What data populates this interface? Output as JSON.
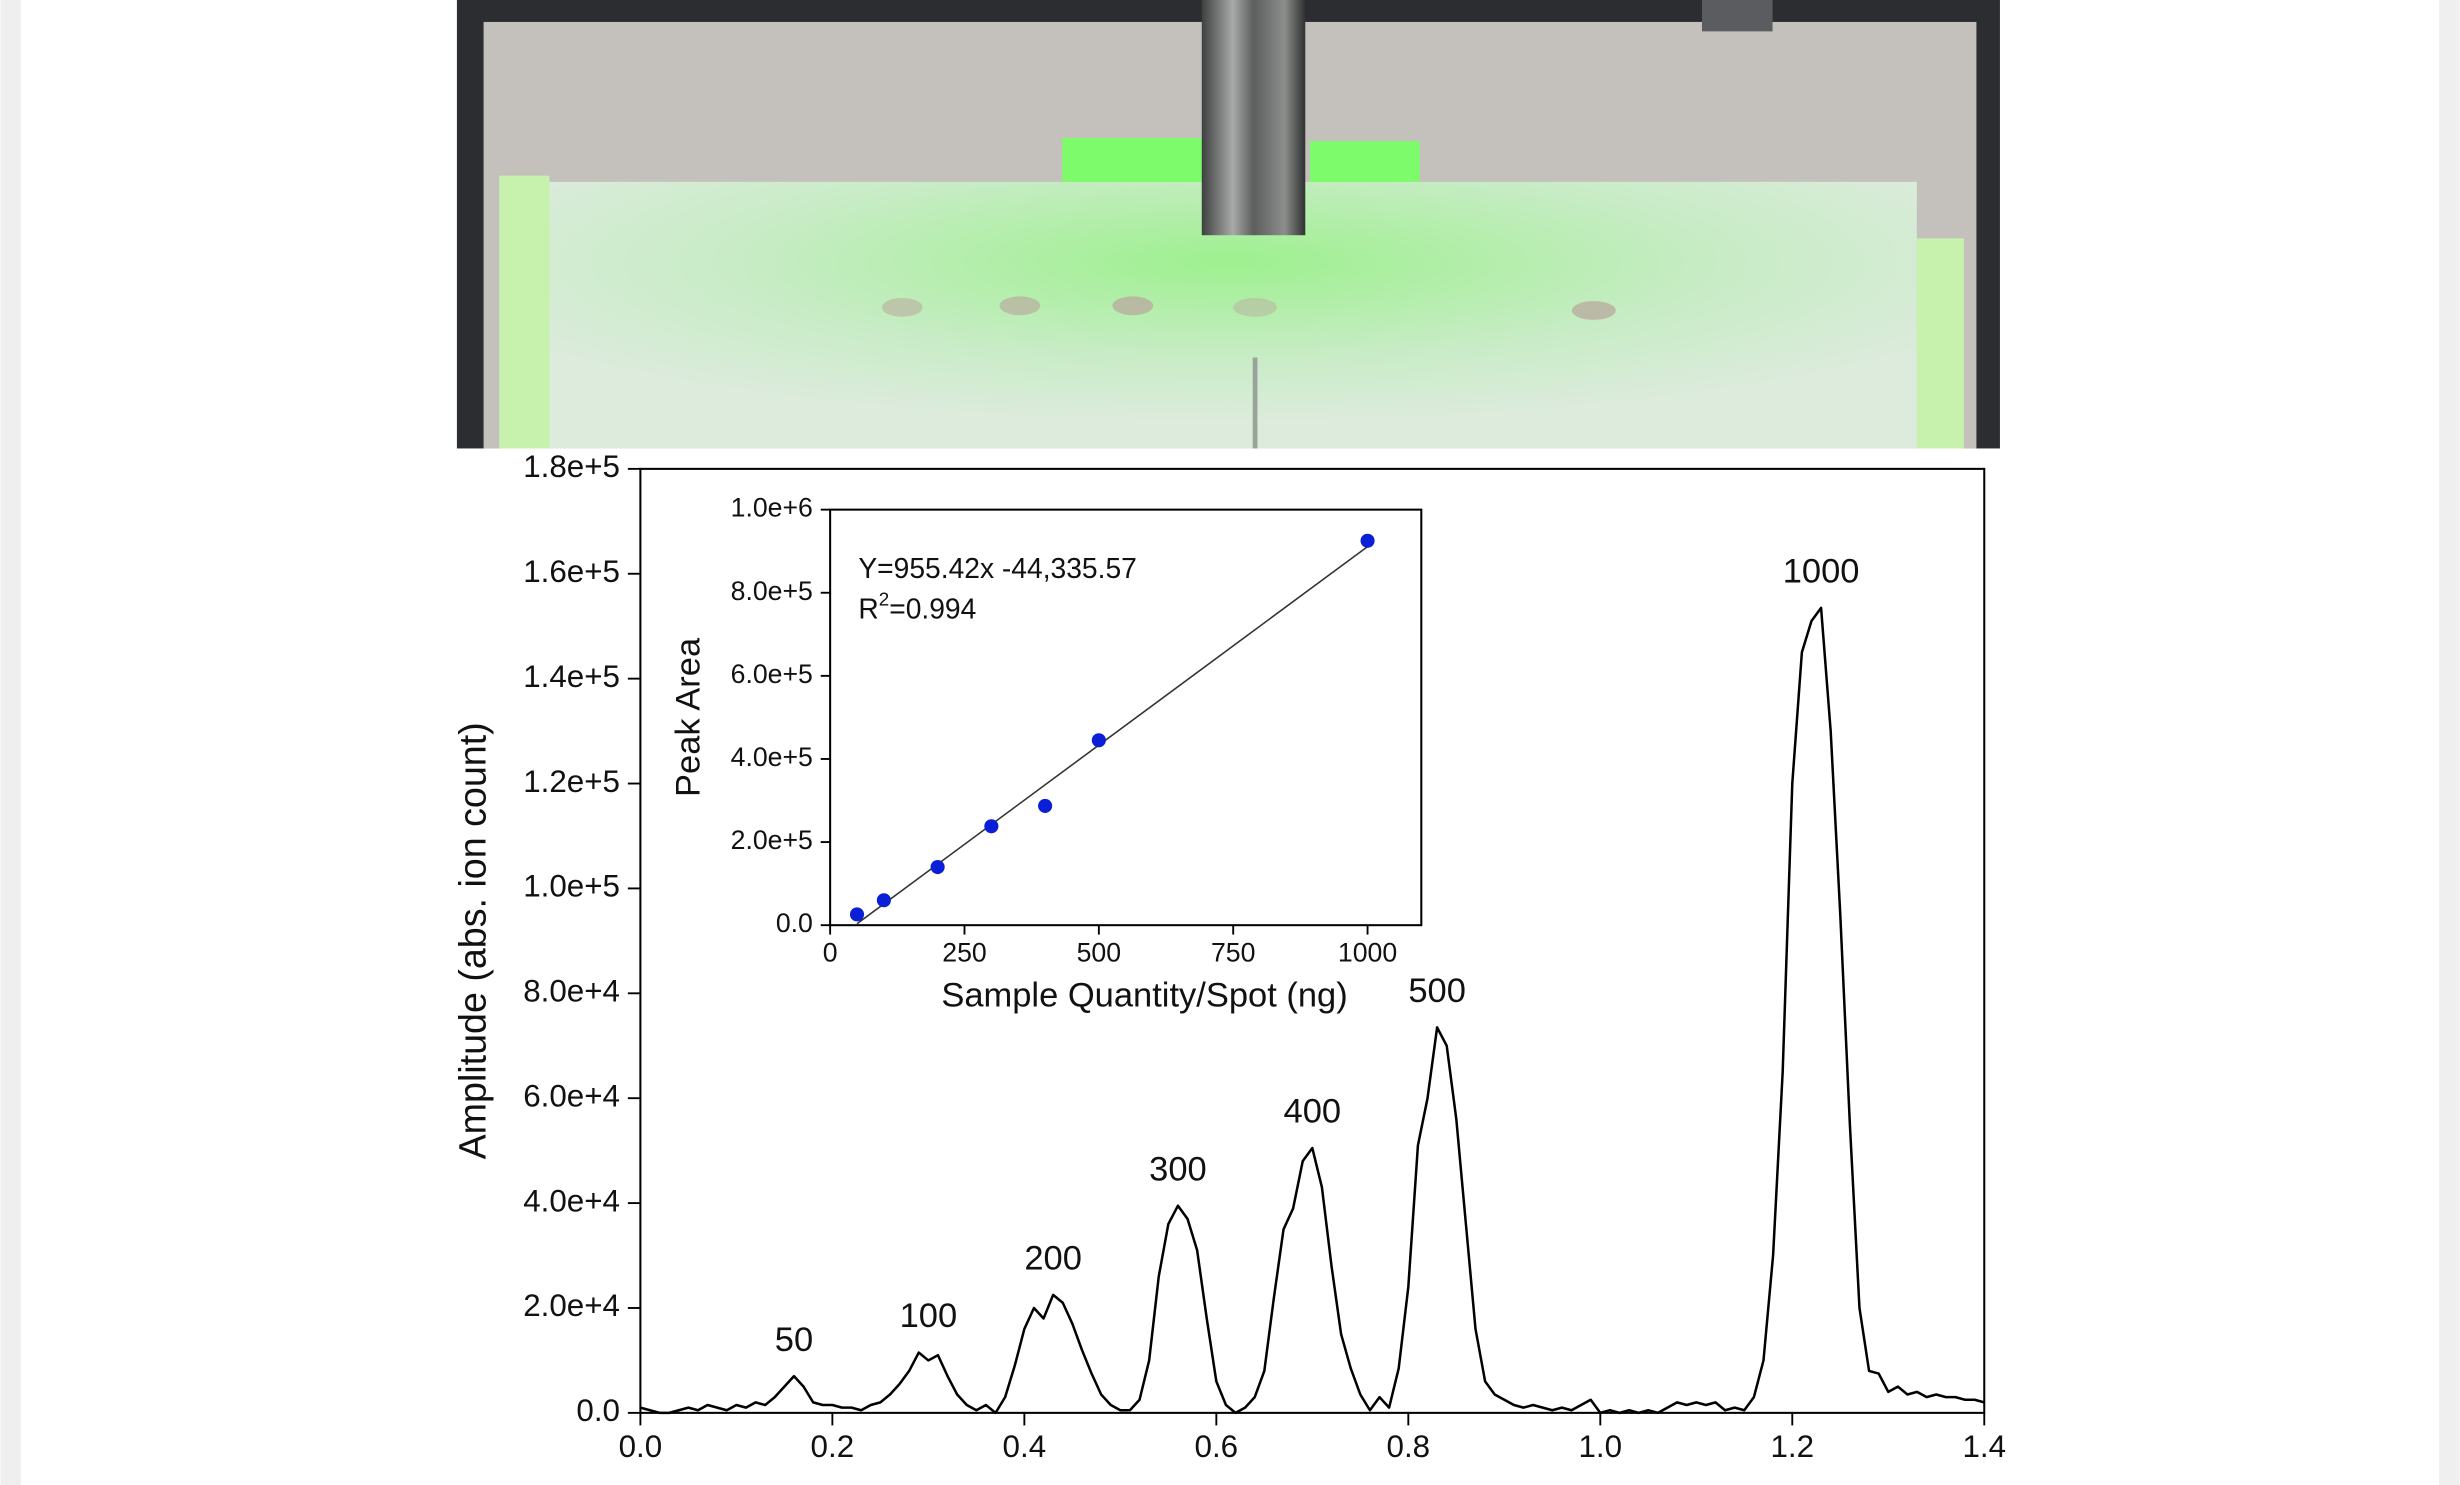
{
  "chart_data": [
    {
      "type": "line",
      "y_label": "Amplitude (abs. ion count)",
      "xlim": [
        0,
        1.4
      ],
      "xticks": [
        {
          "value": 0,
          "label": "0.0"
        },
        0.2,
        0.4,
        0.6,
        0.8,
        {
          "value": 1,
          "label": "1.0"
        },
        1.2,
        1.4
      ],
      "ylim": [
        0,
        180000
      ],
      "yticks": [
        {
          "value": 0,
          "label": "0.0"
        },
        {
          "value": 20000,
          "label": "2.0e+4"
        },
        {
          "value": 40000,
          "label": "4.0e+4"
        },
        {
          "value": 60000,
          "label": "6.0e+4"
        },
        {
          "value": 80000,
          "label": "8.0e+4"
        },
        {
          "value": 100000,
          "label": "1.0e+5"
        },
        {
          "value": 120000,
          "label": "1.2e+5"
        },
        {
          "value": 140000,
          "label": "1.4e+5"
        },
        {
          "value": 160000,
          "label": "1.6e+5"
        },
        {
          "value": 180000,
          "label": "1.8e+5"
        }
      ],
      "color": "#000000",
      "x": [
        0,
        0.01,
        0.02,
        0.03,
        0.04,
        0.05,
        0.06,
        0.07,
        0.08,
        0.09,
        0.1,
        0.11,
        0.12,
        0.13,
        0.14,
        0.15,
        0.16,
        0.17,
        0.18,
        0.19,
        0.2,
        0.21,
        0.22,
        0.23,
        0.24,
        0.25,
        0.26,
        0.27,
        0.28,
        0.29,
        0.3,
        0.31,
        0.32,
        0.33,
        0.34,
        0.35,
        0.36,
        0.37,
        0.38,
        0.39,
        0.4,
        0.41,
        0.42,
        0.43,
        0.44,
        0.45,
        0.46,
        0.47,
        0.48,
        0.49,
        0.5,
        0.51,
        0.52,
        0.53,
        0.54,
        0.55,
        0.56,
        0.57,
        0.58,
        0.59,
        0.6,
        0.61,
        0.62,
        0.63,
        0.64,
        0.65,
        0.66,
        0.67,
        0.68,
        0.69,
        0.7,
        0.71,
        0.72,
        0.73,
        0.74,
        0.75,
        0.76,
        0.77,
        0.78,
        0.79,
        0.8,
        0.81,
        0.82,
        0.83,
        0.84,
        0.85,
        0.86,
        0.87,
        0.88,
        0.89,
        0.9,
        0.91,
        0.92,
        0.93,
        0.94,
        0.95,
        0.96,
        0.97,
        0.98,
        0.99,
        1,
        1.01,
        1.02,
        1.03,
        1.04,
        1.05,
        1.06,
        1.07,
        1.08,
        1.09,
        1.1,
        1.11,
        1.12,
        1.13,
        1.14,
        1.15,
        1.16,
        1.17,
        1.18,
        1.19,
        1.2,
        1.21,
        1.22,
        1.23,
        1.24,
        1.25,
        1.26,
        1.27,
        1.28,
        1.29,
        1.3,
        1.31,
        1.32,
        1.33,
        1.34,
        1.35,
        1.36,
        1.37,
        1.38,
        1.39,
        1.4
      ],
      "values": [
        1000,
        500,
        0,
        0,
        500,
        1000,
        500,
        1500,
        1000,
        500,
        1500,
        1000,
        2000,
        1500,
        3000,
        5000,
        7000,
        5000,
        2000,
        1500,
        1500,
        1000,
        1000,
        500,
        1500,
        2000,
        3500,
        5500,
        8000,
        11500,
        10000,
        11000,
        7000,
        3500,
        1500,
        500,
        1500,
        0,
        3000,
        9000,
        16000,
        20000,
        18000,
        22500,
        21000,
        17000,
        12000,
        7500,
        3500,
        1500,
        500,
        500,
        2500,
        10000,
        26000,
        36000,
        39500,
        37000,
        31000,
        18000,
        6000,
        1500,
        0,
        1000,
        3000,
        8000,
        22000,
        35000,
        39000,
        48000,
        50500,
        43000,
        28000,
        15000,
        8500,
        3500,
        500,
        3000,
        1000,
        8500,
        24000,
        51000,
        60000,
        73500,
        70000,
        56000,
        36000,
        16000,
        6000,
        3500,
        2500,
        1500,
        1000,
        1500,
        1000,
        500,
        1000,
        500,
        1500,
        2500,
        0,
        500,
        0,
        500,
        0,
        500,
        0,
        1000,
        2000,
        1500,
        2000,
        1500,
        2000,
        500,
        1000,
        500,
        3000,
        10000,
        30000,
        65000,
        120000,
        145000,
        151000,
        153500,
        130000,
        95000,
        55000,
        20000,
        8000,
        7500,
        4000,
        5000,
        3500,
        4000,
        3000,
        3500,
        3000,
        3000,
        2500,
        2500,
        2000
      ],
      "annotations": [
        {
          "text": "50",
          "x": 0.16,
          "y": 7000
        },
        {
          "text": "100",
          "x": 0.3,
          "y": 11500
        },
        {
          "text": "200",
          "x": 0.43,
          "y": 22500
        },
        {
          "text": "300",
          "x": 0.56,
          "y": 39500
        },
        {
          "text": "400",
          "x": 0.7,
          "y": 50500
        },
        {
          "text": "500",
          "x": 0.83,
          "y": 73500
        },
        {
          "text": "1000",
          "x": 1.23,
          "y": 153500
        }
      ]
    },
    {
      "type": "scatter",
      "x_label": "Sample Quantity/Spot (ng)",
      "y_label": "Peak Area",
      "xlim": [
        0,
        1100
      ],
      "xticks": [
        0,
        250,
        500,
        750,
        1000
      ],
      "ylim": [
        0,
        1000000
      ],
      "yticks": [
        {
          "value": 0,
          "label": "0.0"
        },
        {
          "value": 200000,
          "label": "2.0e+5"
        },
        {
          "value": 400000,
          "label": "4.0e+5"
        },
        {
          "value": 600000,
          "label": "6.0e+5"
        },
        {
          "value": 800000,
          "label": "8.0e+5"
        },
        {
          "value": 1000000,
          "label": "1.0e+6"
        }
      ],
      "color": "#0b1fd6",
      "x": [
        50,
        100,
        200,
        300,
        400,
        500,
        1000
      ],
      "values": [
        26000,
        60000,
        140000,
        238000,
        287000,
        445000,
        925000
      ],
      "fit": {
        "slope": 955.42,
        "intercept": -44335.57,
        "label": "Y=955.42x -44,335.57",
        "r2_label": [
          "R",
          "2",
          "=0.994"
        ]
      }
    }
  ]
}
